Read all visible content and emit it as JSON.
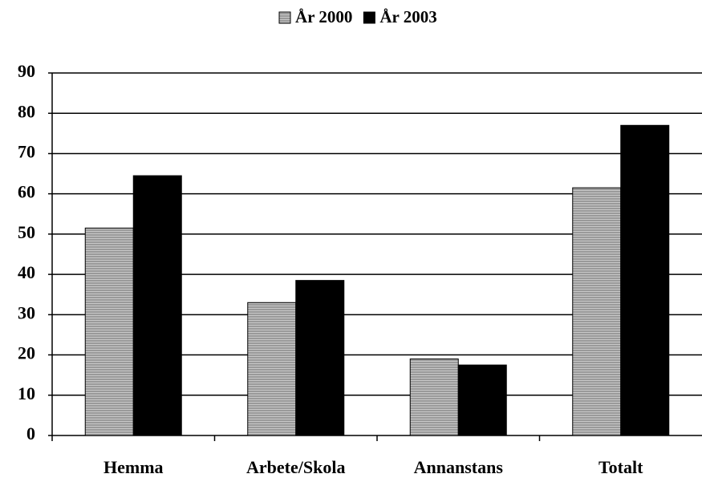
{
  "chart_data": {
    "type": "bar",
    "categories": [
      "Hemma",
      "Arbete/Skola",
      "Annanstans",
      "Totalt"
    ],
    "series": [
      {
        "name": "År 2000",
        "color": "#9a9a9a",
        "values": [
          51.5,
          33,
          19,
          61.5
        ]
      },
      {
        "name": "År 2003",
        "color": "#000000",
        "values": [
          64.5,
          38.5,
          17.5,
          77
        ]
      }
    ],
    "ylim": [
      0,
      90
    ],
    "yticks": [
      0,
      10,
      20,
      30,
      40,
      50,
      60,
      70,
      80,
      90
    ],
    "grid": true,
    "legend": "top"
  }
}
